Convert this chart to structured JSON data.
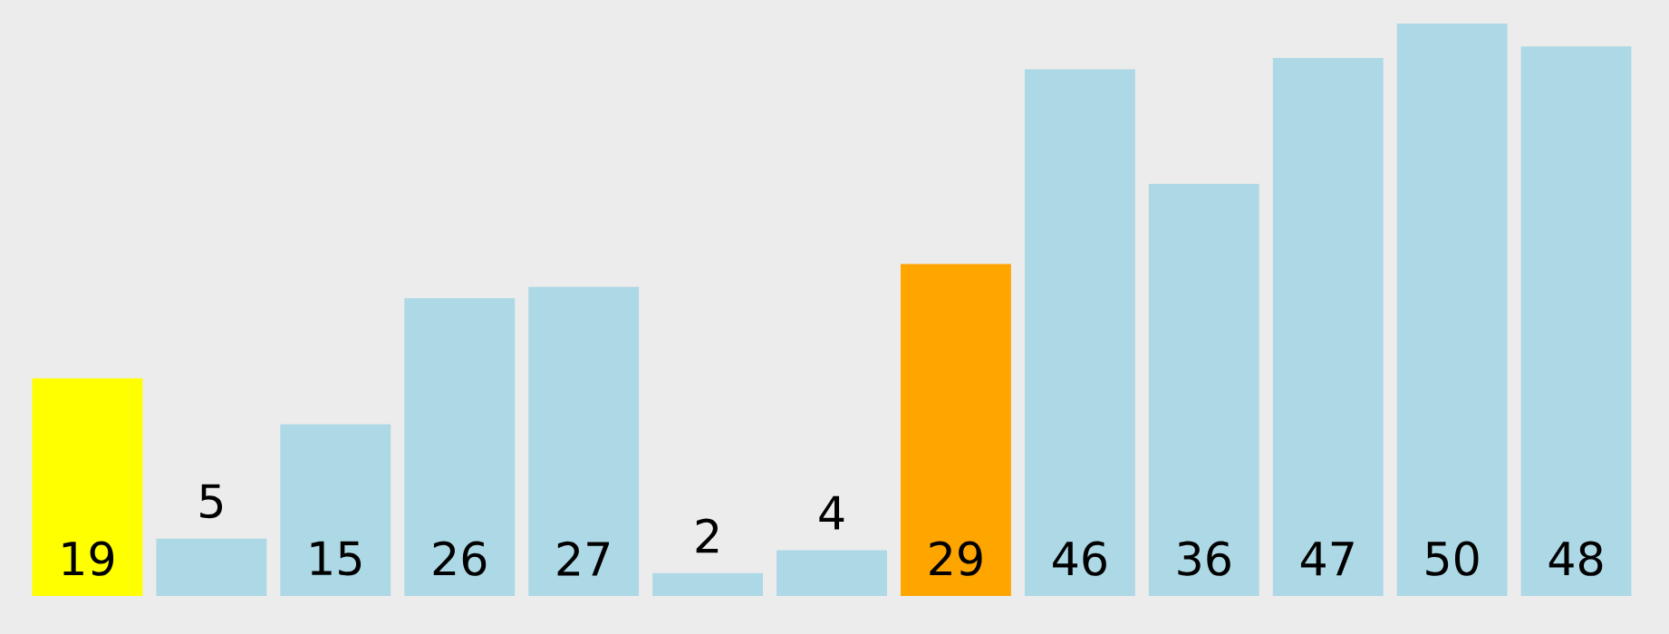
{
  "chart_data": {
    "type": "bar",
    "categories": [
      null,
      null,
      null,
      null,
      null,
      null,
      null,
      null,
      null,
      null,
      null,
      null,
      null
    ],
    "values": [
      19,
      5,
      15,
      26,
      27,
      2,
      4,
      29,
      46,
      36,
      47,
      50,
      48
    ],
    "colors": [
      "#ffff00",
      "#add8e6",
      "#add8e6",
      "#add8e6",
      "#add8e6",
      "#add8e6",
      "#add8e6",
      "#ffa500",
      "#add8e6",
      "#add8e6",
      "#add8e6",
      "#add8e6",
      "#add8e6"
    ],
    "data_labels": true
  }
}
